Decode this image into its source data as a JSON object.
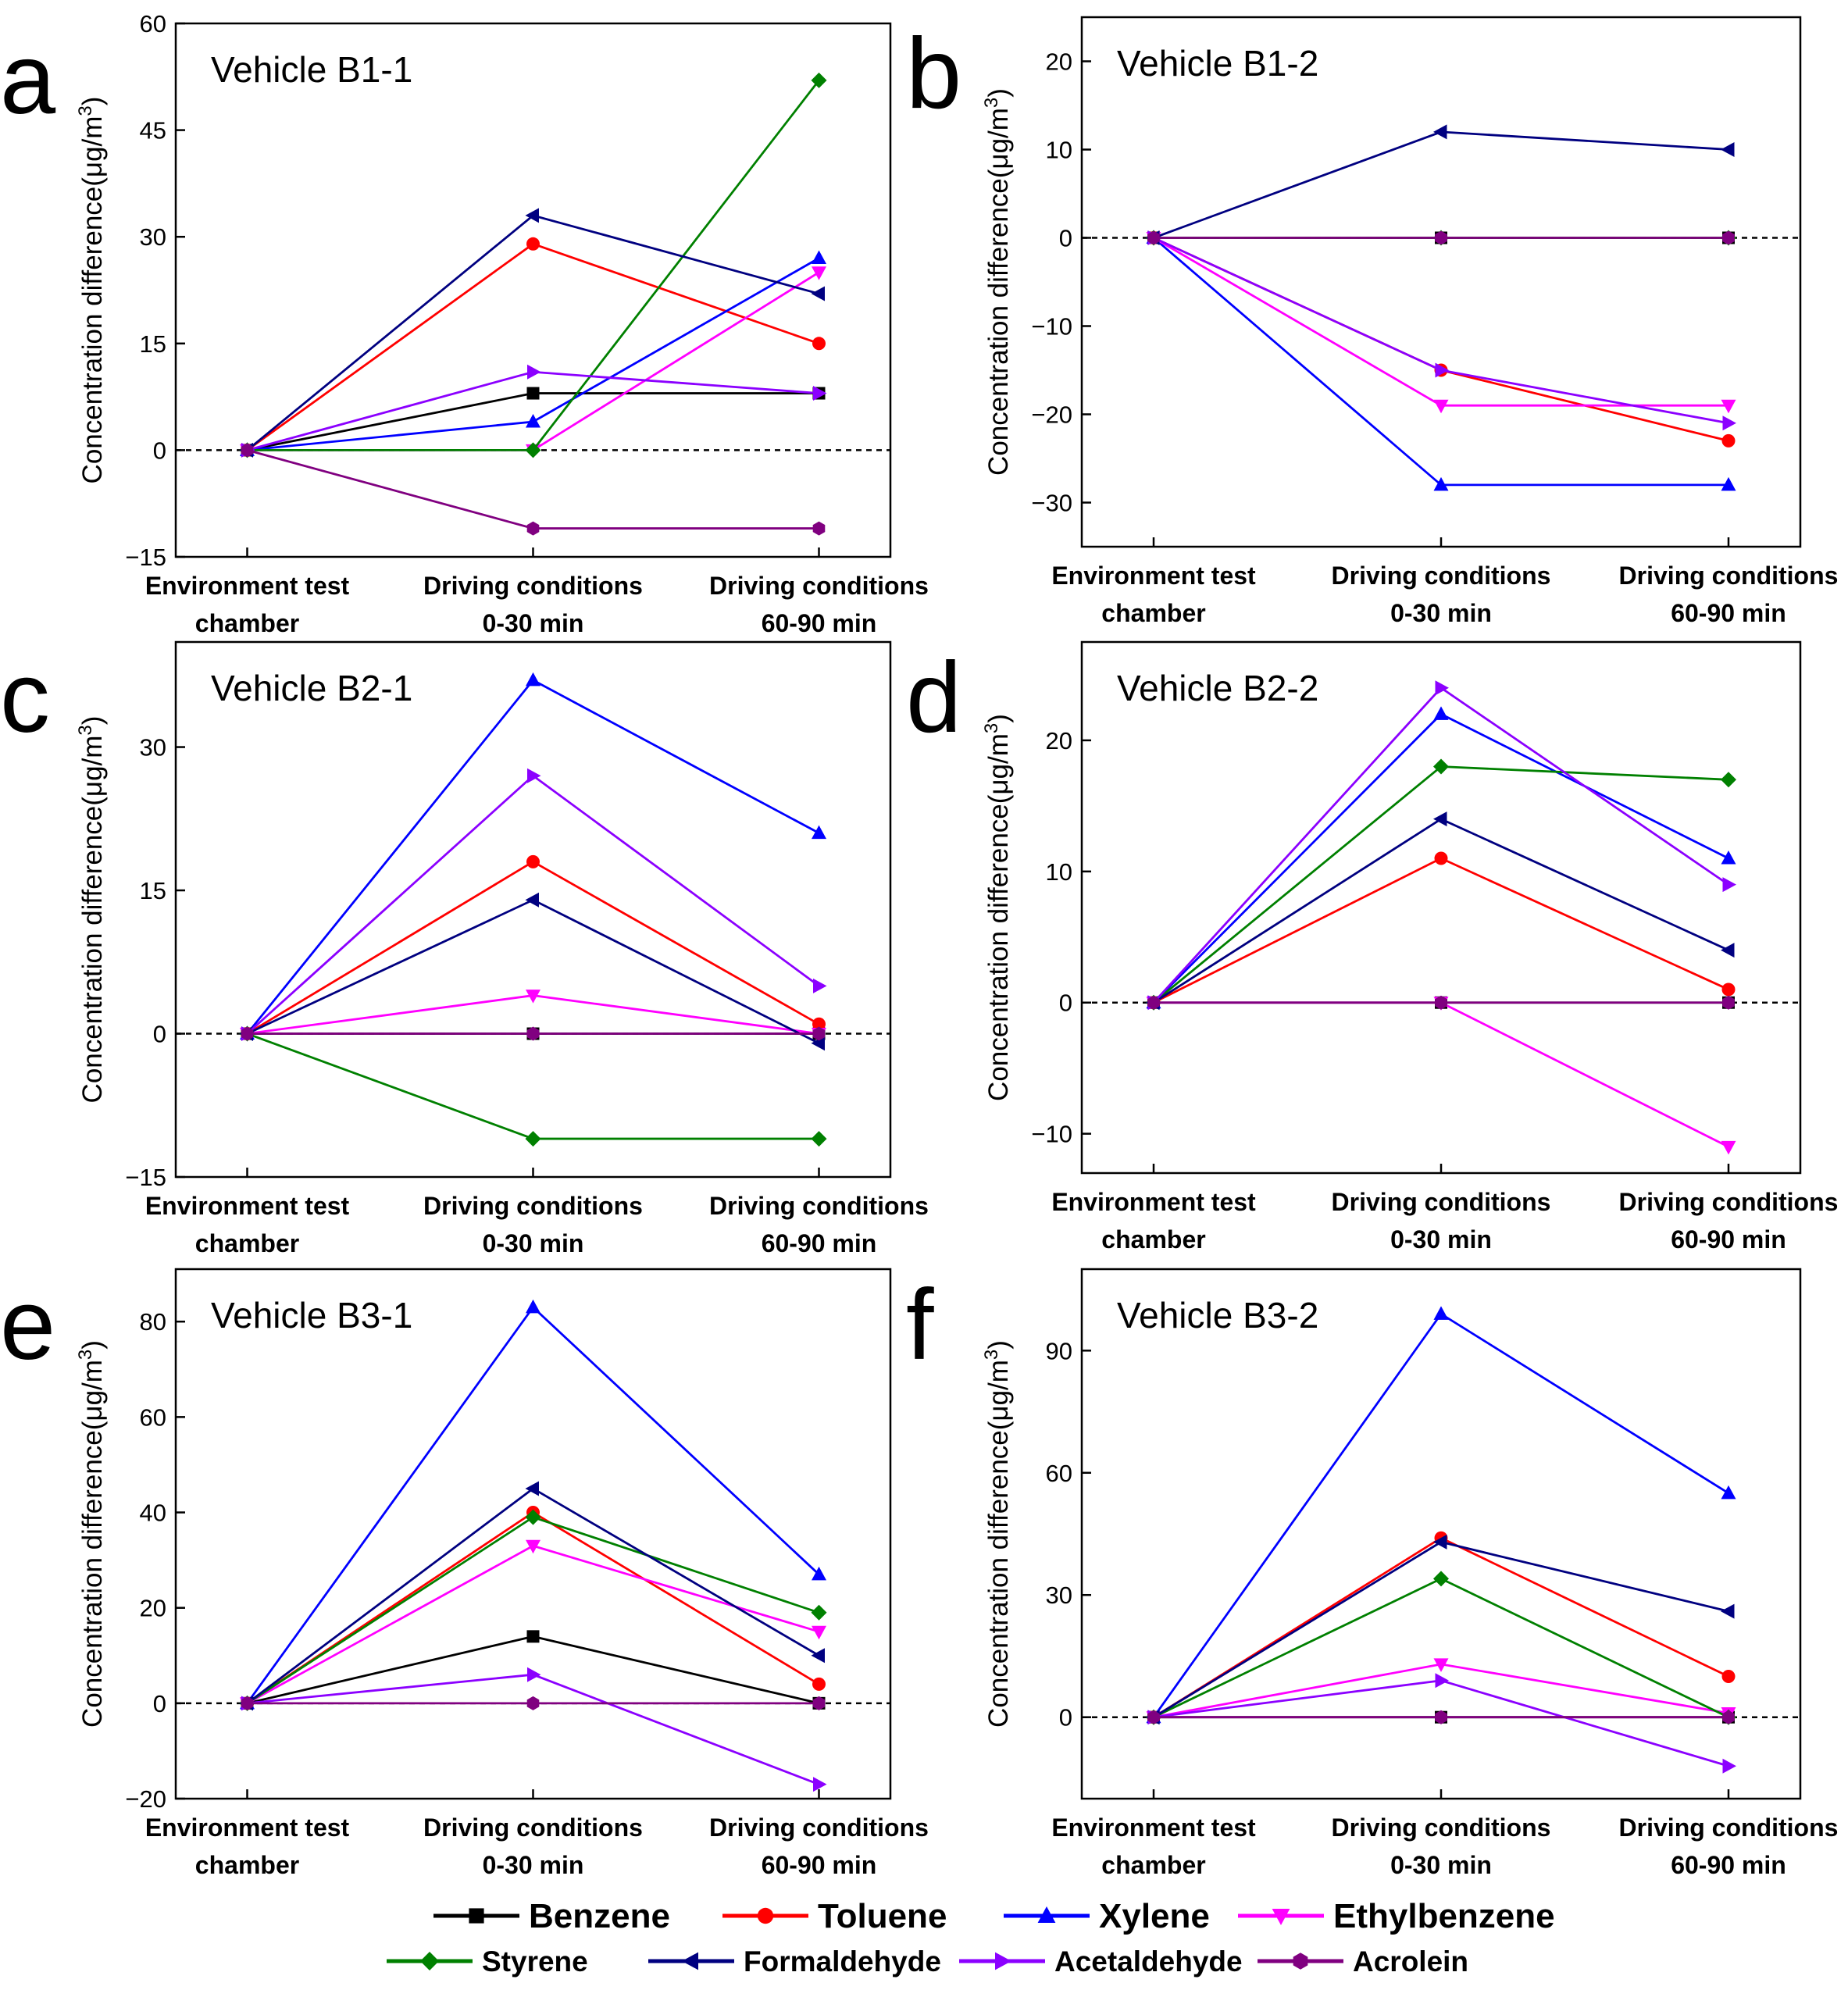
{
  "legend": [
    {
      "name": "Benzene",
      "color": "#000000",
      "marker": "square"
    },
    {
      "name": "Toluene",
      "color": "#ff0000",
      "marker": "circle"
    },
    {
      "name": "Xylene",
      "color": "#0000ff",
      "marker": "triangle-up"
    },
    {
      "name": "Ethylbenzene",
      "color": "#ff00ff",
      "marker": "triangle-down"
    },
    {
      "name": "Styrene",
      "color": "#008000",
      "marker": "diamond"
    },
    {
      "name": "Formaldehyde",
      "color": "#000080",
      "marker": "triangle-left"
    },
    {
      "name": "Acetaldehyde",
      "color": "#8b00ff",
      "marker": "triangle-right"
    },
    {
      "name": "Acrolein",
      "color": "#800080",
      "marker": "hexagon"
    }
  ],
  "chart_data": [
    {
      "panel": "a",
      "title": "Vehicle B1-1",
      "type": "line",
      "categories": [
        [
          "Environment test",
          "chamber"
        ],
        [
          "Driving conditions",
          "0-30 min"
        ],
        [
          "Driving conditions",
          "60-90 min"
        ]
      ],
      "ylabel_main": "Concentration difference",
      "ylabel_unit": "(μg/m",
      "ylabel_sup": "3",
      "ylabel_close": ")",
      "ylim": [
        -15,
        60
      ],
      "yticks": [
        -15,
        0,
        15,
        30,
        45,
        60
      ],
      "yticklabels": [
        "−15",
        "0",
        "15",
        "30",
        "45",
        "60"
      ],
      "reference_line": 0,
      "series": [
        {
          "name": "Benzene",
          "values": [
            0,
            8,
            8
          ]
        },
        {
          "name": "Toluene",
          "values": [
            0,
            29,
            15
          ]
        },
        {
          "name": "Xylene",
          "values": [
            0,
            4,
            27
          ]
        },
        {
          "name": "Ethylbenzene",
          "values": [
            0,
            0,
            25
          ]
        },
        {
          "name": "Styrene",
          "values": [
            0,
            0,
            52
          ]
        },
        {
          "name": "Formaldehyde",
          "values": [
            0,
            33,
            22
          ]
        },
        {
          "name": "Acetaldehyde",
          "values": [
            0,
            11,
            8
          ]
        },
        {
          "name": "Acrolein",
          "values": [
            0,
            -11,
            -11
          ]
        }
      ]
    },
    {
      "panel": "b",
      "title": "Vehicle B1-2",
      "type": "line",
      "categories": [
        [
          "Environment test",
          "chamber"
        ],
        [
          "Driving conditions",
          "0-30 min"
        ],
        [
          "Driving conditions",
          "60-90 min"
        ]
      ],
      "ylabel_main": "Concentration difference",
      "ylabel_unit": "(μg/m",
      "ylabel_sup": "3",
      "ylabel_close": ")",
      "ylim": [
        -35,
        25
      ],
      "yticks": [
        -30,
        -20,
        -10,
        0,
        10,
        20
      ],
      "yticklabels": [
        "−30",
        "−20",
        "−10",
        "0",
        "10",
        "20"
      ],
      "reference_line": 0,
      "series": [
        {
          "name": "Benzene",
          "values": [
            0,
            0,
            0
          ]
        },
        {
          "name": "Toluene",
          "values": [
            0,
            -15,
            -23
          ]
        },
        {
          "name": "Xylene",
          "values": [
            0,
            -28,
            -28
          ]
        },
        {
          "name": "Ethylbenzene",
          "values": [
            0,
            -19,
            -19
          ]
        },
        {
          "name": "Styrene",
          "values": [
            0,
            0,
            0
          ]
        },
        {
          "name": "Formaldehyde",
          "values": [
            0,
            12,
            10
          ]
        },
        {
          "name": "Acetaldehyde",
          "values": [
            0,
            -15,
            -21
          ]
        },
        {
          "name": "Acrolein",
          "values": [
            0,
            0,
            0
          ]
        }
      ]
    },
    {
      "panel": "c",
      "title": "Vehicle B2-1",
      "type": "line",
      "categories": [
        [
          "Environment test",
          "chamber"
        ],
        [
          "Driving conditions",
          "0-30 min"
        ],
        [
          "Driving conditions",
          "60-90 min"
        ]
      ],
      "ylabel_main": "Concentration difference",
      "ylabel_unit": "(μg/m",
      "ylabel_sup": "3",
      "ylabel_close": ")",
      "ylim": [
        -15,
        41
      ],
      "yticks": [
        -15,
        0,
        15,
        30
      ],
      "yticklabels": [
        "−15",
        "0",
        "15",
        "30"
      ],
      "reference_line": 0,
      "series": [
        {
          "name": "Benzene",
          "values": [
            0,
            0,
            0
          ]
        },
        {
          "name": "Toluene",
          "values": [
            0,
            18,
            1
          ]
        },
        {
          "name": "Xylene",
          "values": [
            0,
            37,
            21
          ]
        },
        {
          "name": "Ethylbenzene",
          "values": [
            0,
            4,
            0
          ]
        },
        {
          "name": "Styrene",
          "values": [
            0,
            -11,
            -11
          ]
        },
        {
          "name": "Formaldehyde",
          "values": [
            0,
            14,
            -1
          ]
        },
        {
          "name": "Acetaldehyde",
          "values": [
            0,
            27,
            5
          ]
        },
        {
          "name": "Acrolein",
          "values": [
            0,
            0,
            0
          ]
        }
      ]
    },
    {
      "panel": "d",
      "title": "Vehicle B2-2",
      "type": "line",
      "categories": [
        [
          "Environment test",
          "chamber"
        ],
        [
          "Driving conditions",
          "0-30 min"
        ],
        [
          "Driving conditions",
          "60-90 min"
        ]
      ],
      "ylabel_main": "Concentration difference",
      "ylabel_unit": "(μg/m",
      "ylabel_sup": "3",
      "ylabel_close": ")",
      "ylim": [
        -13,
        27.5
      ],
      "yticks": [
        -10,
        0,
        10,
        20
      ],
      "yticklabels": [
        "−10",
        "0",
        "10",
        "20"
      ],
      "reference_line": 0,
      "series": [
        {
          "name": "Benzene",
          "values": [
            0,
            0,
            0
          ]
        },
        {
          "name": "Toluene",
          "values": [
            0,
            11,
            1
          ]
        },
        {
          "name": "Xylene",
          "values": [
            0,
            22,
            11
          ]
        },
        {
          "name": "Ethylbenzene",
          "values": [
            0,
            0,
            -11
          ]
        },
        {
          "name": "Styrene",
          "values": [
            0,
            18,
            17
          ]
        },
        {
          "name": "Formaldehyde",
          "values": [
            0,
            14,
            4
          ]
        },
        {
          "name": "Acetaldehyde",
          "values": [
            0,
            24,
            9
          ]
        },
        {
          "name": "Acrolein",
          "values": [
            0,
            0,
            0
          ]
        }
      ]
    },
    {
      "panel": "e",
      "title": "Vehicle B3-1",
      "type": "line",
      "categories": [
        [
          "Environment test",
          "chamber"
        ],
        [
          "Driving conditions",
          "0-30 min"
        ],
        [
          "Driving conditions",
          "60-90 min"
        ]
      ],
      "ylabel_main": "Concentration difference",
      "ylabel_unit": "(μg/m",
      "ylabel_sup": "3",
      "ylabel_close": ")",
      "ylim": [
        -20,
        91
      ],
      "yticks": [
        -20,
        0,
        20,
        40,
        60,
        80
      ],
      "yticklabels": [
        "−20",
        "0",
        "20",
        "40",
        "60",
        "80"
      ],
      "reference_line": 0,
      "series": [
        {
          "name": "Benzene",
          "values": [
            0,
            14,
            0
          ]
        },
        {
          "name": "Toluene",
          "values": [
            0,
            40,
            4
          ]
        },
        {
          "name": "Xylene",
          "values": [
            0,
            83,
            27
          ]
        },
        {
          "name": "Ethylbenzene",
          "values": [
            0,
            33,
            15
          ]
        },
        {
          "name": "Styrene",
          "values": [
            0,
            39,
            19
          ]
        },
        {
          "name": "Formaldehyde",
          "values": [
            0,
            45,
            10
          ]
        },
        {
          "name": "Acetaldehyde",
          "values": [
            0,
            6,
            -17
          ]
        },
        {
          "name": "Acrolein",
          "values": [
            0,
            0,
            0
          ]
        }
      ]
    },
    {
      "panel": "f",
      "title": "Vehicle B3-2",
      "type": "line",
      "categories": [
        [
          "Environment test",
          "chamber"
        ],
        [
          "Driving conditions",
          "0-30 min"
        ],
        [
          "Driving conditions",
          "60-90 min"
        ]
      ],
      "ylabel_main": "Concentration difference",
      "ylabel_unit": "(μg/m",
      "ylabel_sup": "3",
      "ylabel_close": ")",
      "ylim": [
        -20,
        110
      ],
      "yticks": [
        0,
        30,
        60,
        90
      ],
      "yticklabels": [
        "0",
        "30",
        "60",
        "90"
      ],
      "reference_line": 0,
      "series": [
        {
          "name": "Benzene",
          "values": [
            0,
            0,
            0
          ]
        },
        {
          "name": "Toluene",
          "values": [
            0,
            44,
            10
          ]
        },
        {
          "name": "Xylene",
          "values": [
            0,
            99,
            55
          ]
        },
        {
          "name": "Ethylbenzene",
          "values": [
            0,
            13,
            1
          ]
        },
        {
          "name": "Styrene",
          "values": [
            0,
            34,
            0
          ]
        },
        {
          "name": "Formaldehyde",
          "values": [
            0,
            43,
            26
          ]
        },
        {
          "name": "Acetaldehyde",
          "values": [
            0,
            9,
            -12
          ]
        },
        {
          "name": "Acrolein",
          "values": [
            0,
            0,
            0
          ]
        }
      ]
    }
  ]
}
